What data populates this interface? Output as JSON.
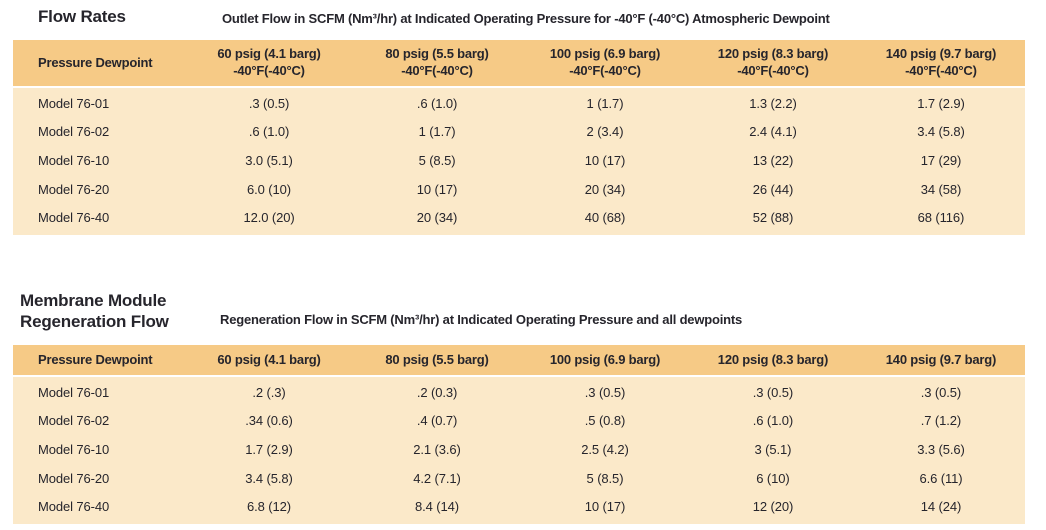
{
  "colors": {
    "table_header_bg": "#f6ca86",
    "table_body_bg": "#fbe9c9",
    "text": "#26252c",
    "page_bg": "#ffffff"
  },
  "sections": [
    {
      "heading": "Flow Rates",
      "subtitle": "Outlet Flow  in SCFM (Nm³/hr) at Indicated Operating Pressure for -40°F (-40°C) Atmospheric Dewpoint",
      "table": {
        "columns": [
          {
            "label": "Pressure Dewpoint",
            "sub": ""
          },
          {
            "label": "60 psig (4.1 barg)",
            "sub": "-40°F(-40°C)"
          },
          {
            "label": "80 psig (5.5 barg)",
            "sub": "-40°F(-40°C)"
          },
          {
            "label": "100 psig (6.9 barg)",
            "sub": "-40°F(-40°C)"
          },
          {
            "label": "120 psig (8.3 barg)",
            "sub": "-40°F(-40°C)"
          },
          {
            "label": "140 psig (9.7 barg)",
            "sub": "-40°F(-40°C)"
          }
        ],
        "rows": [
          {
            "model": "Model 76-01",
            "values": [
              ".3 (0.5)",
              ".6 (1.0)",
              "1 (1.7)",
              "1.3 (2.2)",
              "1.7 (2.9)"
            ]
          },
          {
            "model": "Model 76-02",
            "values": [
              ".6 (1.0)",
              "1 (1.7)",
              "2 (3.4)",
              "2.4 (4.1)",
              "3.4 (5.8)"
            ]
          },
          {
            "model": "Model 76-10",
            "values": [
              "3.0 (5.1)",
              "5 (8.5)",
              "10 (17)",
              "13 (22)",
              "17 (29)"
            ]
          },
          {
            "model": "Model 76-20",
            "values": [
              "6.0 (10)",
              "10 (17)",
              "20 (34)",
              "26 (44)",
              "34 (58)"
            ]
          },
          {
            "model": "Model 76-40",
            "values": [
              "12.0 (20)",
              "20 (34)",
              "40 (68)",
              "52 (88)",
              "68 (116)"
            ]
          }
        ]
      }
    },
    {
      "heading": "Membrane Module\nRegeneration Flow",
      "subtitle": "Regeneration Flow in SCFM (Nm³/hr) at Indicated Operating Pressure and all dewpoints",
      "table": {
        "columns": [
          {
            "label": "Pressure Dewpoint",
            "sub": ""
          },
          {
            "label": "60 psig (4.1 barg)",
            "sub": ""
          },
          {
            "label": "80 psig (5.5 barg)",
            "sub": ""
          },
          {
            "label": "100 psig (6.9 barg)",
            "sub": ""
          },
          {
            "label": "120 psig (8.3 barg)",
            "sub": ""
          },
          {
            "label": "140 psig (9.7 barg)",
            "sub": ""
          }
        ],
        "rows": [
          {
            "model": "Model 76-01",
            "values": [
              ".2 (.3)",
              ".2 (0.3)",
              ".3 (0.5)",
              ".3 (0.5)",
              ".3 (0.5)"
            ]
          },
          {
            "model": "Model 76-02",
            "values": [
              ".34 (0.6)",
              ".4 (0.7)",
              ".5 (0.8)",
              ".6 (1.0)",
              ".7 (1.2)"
            ]
          },
          {
            "model": "Model 76-10",
            "values": [
              "1.7 (2.9)",
              "2.1 (3.6)",
              "2.5 (4.2)",
              "3 (5.1)",
              "3.3 (5.6)"
            ]
          },
          {
            "model": "Model 76-20",
            "values": [
              "3.4 (5.8)",
              "4.2 (7.1)",
              "5 (8.5)",
              "6 (10)",
              "6.6 (11)"
            ]
          },
          {
            "model": "Model 76-40",
            "values": [
              "6.8 (12)",
              "8.4 (14)",
              "10 (17)",
              "12 (20)",
              "14 (24)"
            ]
          }
        ]
      }
    }
  ]
}
